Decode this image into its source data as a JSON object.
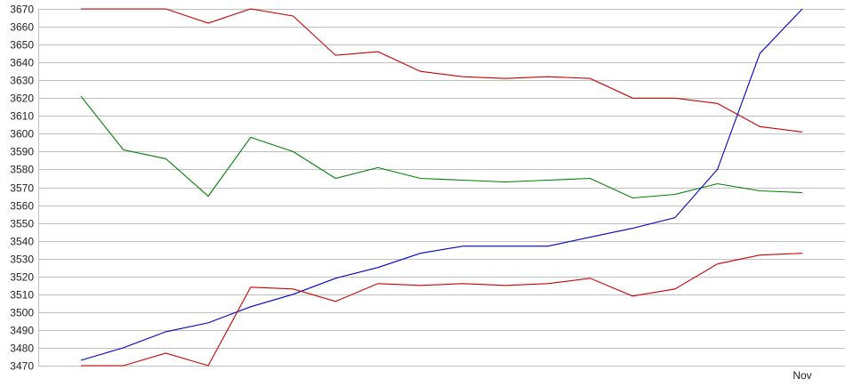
{
  "chart_data": {
    "type": "line",
    "title": "",
    "xlabel": "",
    "ylabel": "",
    "ylim": [
      3470,
      3670
    ],
    "ytick_step": 10,
    "grid": true,
    "legend": "none",
    "x_labels": [
      "",
      "",
      "",
      "",
      "",
      "",
      "",
      "",
      "",
      "",
      "",
      "",
      "",
      "",
      "",
      "",
      "",
      "Nov"
    ],
    "series": [
      {
        "color": "#cc0000",
        "values": [
          3670,
          3670,
          3670,
          3662,
          3670,
          3666,
          3644,
          3646,
          3635,
          3632,
          3631,
          3632,
          3631,
          3620,
          3620,
          3617,
          3604,
          3601
        ]
      },
      {
        "color": "#008000",
        "values": [
          3621,
          3591,
          3586,
          3565,
          3598,
          3590,
          3575,
          3581,
          3575,
          3574,
          3573,
          3574,
          3575,
          3564,
          3566,
          3572,
          3568,
          3567
        ]
      },
      {
        "color": "#0000cc",
        "values": [
          3473,
          3480,
          3489,
          3494,
          3503,
          3510,
          3519,
          3525,
          3533,
          3537,
          3537,
          3537,
          3542,
          3547,
          3553,
          3580,
          3645,
          3670
        ]
      },
      {
        "color": "#cc0000",
        "values": [
          3470,
          3470,
          3477,
          3470,
          3514,
          3513,
          3506,
          3516,
          3515,
          3516,
          3515,
          3516,
          3519,
          3509,
          3513,
          3527,
          3532,
          3533
        ]
      }
    ]
  }
}
